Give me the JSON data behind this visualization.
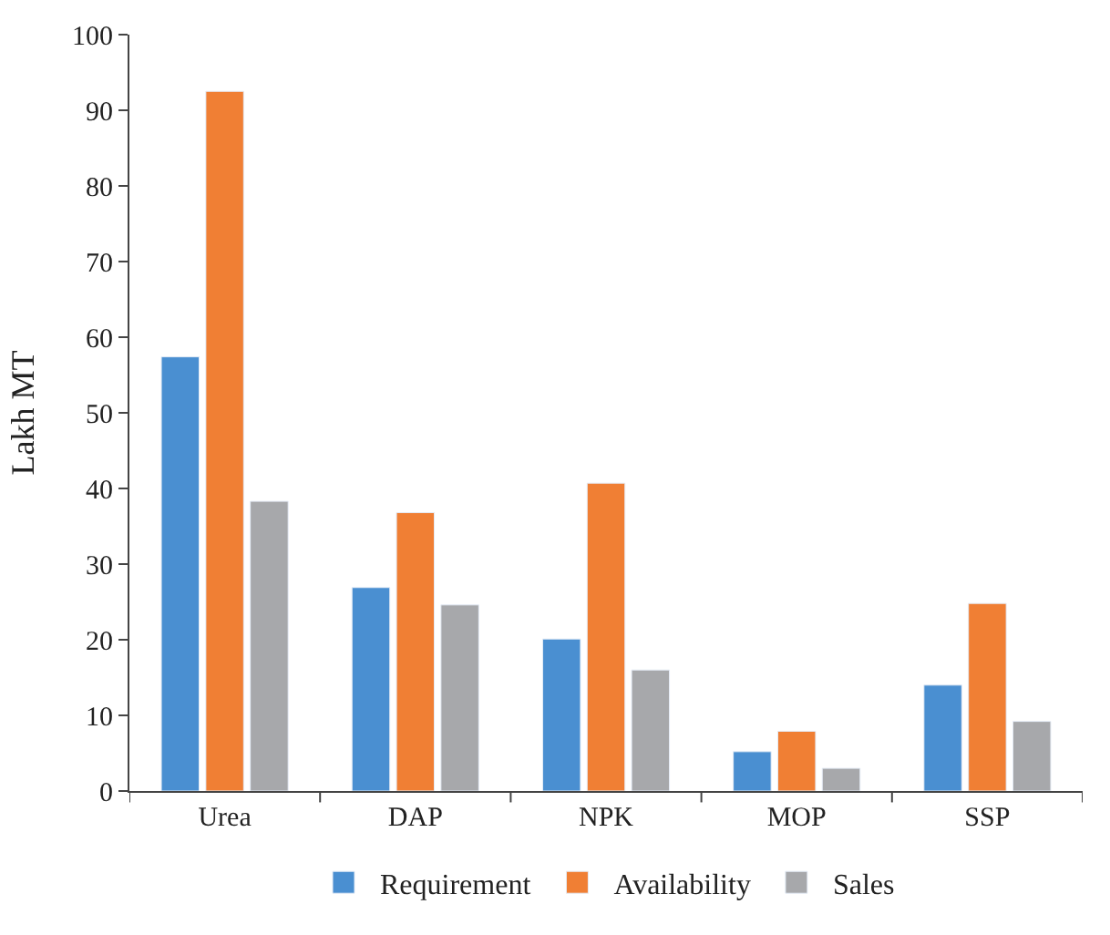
{
  "chart_data": {
    "type": "bar",
    "ylabel": "Lakh MT",
    "categories": [
      "Urea",
      "DAP",
      "NPK",
      "MOP",
      "SSP"
    ],
    "series": [
      {
        "name": "Requirement",
        "color": "#4a8fd1",
        "values": [
          57.4,
          26.9,
          20.1,
          5.2,
          14.0
        ]
      },
      {
        "name": "Availability",
        "color": "#f07f34",
        "values": [
          92.5,
          36.8,
          40.7,
          7.9,
          24.8
        ]
      },
      {
        "name": "Sales",
        "color": "#a7a8ab",
        "values": [
          38.3,
          24.6,
          16.0,
          3.0,
          9.2
        ]
      }
    ],
    "ylim": [
      0,
      100
    ],
    "yticks": [
      0,
      10,
      20,
      30,
      40,
      50,
      60,
      70,
      80,
      90,
      100
    ],
    "legend": "bottom"
  }
}
